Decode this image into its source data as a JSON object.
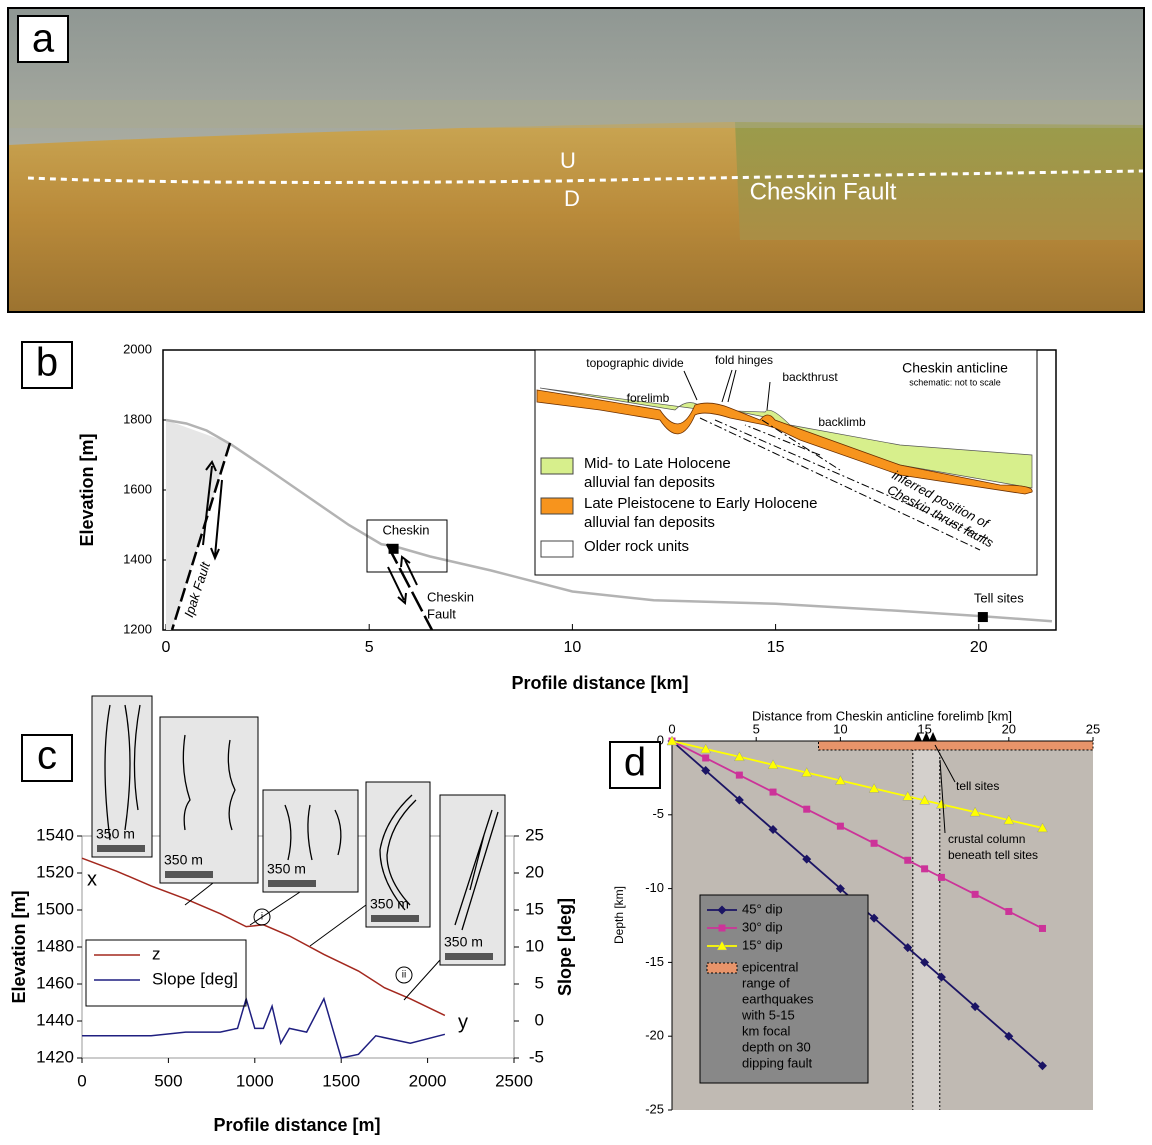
{
  "photo": {
    "label": "a",
    "up": "U",
    "down": "D",
    "fault": "Cheskin Fault"
  },
  "chart_data": [
    {
      "type": "line",
      "panel": "b",
      "xlabel": "Profile distance [km]",
      "ylabel": "Elevation [m]",
      "xlim": [
        0,
        21.9
      ],
      "ylim": [
        1200,
        2000
      ],
      "xticks": [
        0,
        5,
        10,
        15,
        20
      ],
      "yticks": [
        1200,
        1400,
        1600,
        1800,
        2000
      ],
      "x": [
        0,
        0.5,
        1,
        1.6,
        2.5,
        3.5,
        4.5,
        5.3,
        5.6,
        6.5,
        8,
        10,
        12,
        15,
        18,
        20,
        21.8
      ],
      "values": [
        1800,
        1790,
        1770,
        1730,
        1660,
        1580,
        1500,
        1445,
        1440,
        1410,
        1370,
        1310,
        1285,
        1275,
        1255,
        1240,
        1225
      ],
      "color": "#b3b3b3",
      "sites": [
        {
          "name": "Cheskin",
          "x": 5.6,
          "y": 1432
        },
        {
          "name": "Tell sites",
          "x": 20.1,
          "y": 1237
        }
      ],
      "ipak": "Ipak Fault",
      "cheskin_fault": [
        "Cheskin",
        "Fault"
      ],
      "inset": {
        "title": "Cheskin anticline",
        "note": "schematic: not to scale",
        "divide": "topographic divide",
        "hinges": "fold hinges",
        "backthrust": "backthrust",
        "forelimb": "forelimb",
        "backlimb": "backlimb",
        "thrusts": [
          "inferred position of",
          "Cheskin thrust faults"
        ],
        "legend": [
          {
            "lines": [
              "Mid- to Late Holocene",
              "alluvial fan deposits"
            ],
            "color": "#d7ef8c"
          },
          {
            "lines": [
              "Late Pleistocene to Early Holocene",
              "alluvial fan deposits"
            ],
            "color": "#f7941d"
          },
          {
            "lines": [
              "Older rock units"
            ],
            "color": "#ffffff"
          }
        ]
      }
    },
    {
      "type": "line",
      "panel": "c",
      "xlabel": "Profile distance [m]",
      "ylabel": "Elevation [m]",
      "y2label": "Slope [deg]",
      "xlim": [
        0,
        2500
      ],
      "ylim": [
        1420,
        1540
      ],
      "y2lim": [
        -5,
        25
      ],
      "xticks": [
        0,
        500,
        1000,
        1500,
        2000,
        2500
      ],
      "yticks": [
        1420,
        1440,
        1460,
        1480,
        1500,
        1520,
        1540
      ],
      "y2ticks": [
        -5,
        0,
        5,
        10,
        15,
        20,
        25
      ],
      "series": [
        {
          "name": "z",
          "color": "#a3281e",
          "x": [
            0,
            200,
            400,
            600,
            800,
            950,
            1050,
            1200,
            1400,
            1600,
            1750,
            1900,
            2100
          ],
          "values": [
            1528,
            1521,
            1513,
            1506,
            1498,
            1491,
            1492,
            1486,
            1476,
            1467,
            1458,
            1452,
            1443
          ]
        },
        {
          "name": "Slope [deg]",
          "color": "#1f1f80",
          "axis": "y2",
          "x": [
            0,
            200,
            400,
            600,
            800,
            900,
            950,
            1000,
            1050,
            1100,
            1150,
            1200,
            1300,
            1400,
            1450,
            1500,
            1600,
            1700,
            1900,
            2100
          ],
          "values": [
            -2,
            -2,
            -2,
            -1.5,
            -1.5,
            -1,
            3,
            -1,
            -1,
            2,
            -3,
            -1,
            -1.5,
            3,
            -1,
            -5,
            -4.5,
            -2,
            -3,
            -1.8
          ]
        }
      ],
      "start": "x",
      "end": "y",
      "i": "i",
      "ii": "ii",
      "scale_labels": [
        "350 m",
        "350 m",
        "350 m",
        "350 m",
        "350 m"
      ]
    },
    {
      "type": "line",
      "panel": "d",
      "title": "Distance from Cheskin anticline forelimb [km]",
      "ylabel": "Depth [km]",
      "xlim": [
        0,
        25
      ],
      "ylim": [
        -25,
        0
      ],
      "xticks": [
        0,
        5,
        10,
        15,
        20,
        25
      ],
      "yticks": [
        0,
        -5,
        -10,
        -15,
        -20,
        -25
      ],
      "x": [
        0,
        2,
        4,
        6,
        8,
        10,
        12,
        14,
        15,
        16,
        18,
        20,
        22
      ],
      "series": [
        {
          "name": "45° dip",
          "color": "#1b1464",
          "marker": "diamond",
          "values": [
            0,
            -2,
            -4,
            -6,
            -8,
            -10,
            -12,
            -14,
            -15,
            -16,
            -18,
            -20,
            -22
          ]
        },
        {
          "name": "30° dip",
          "color": "#cc3399",
          "marker": "square",
          "values": [
            0,
            -1.15,
            -2.31,
            -3.46,
            -4.62,
            -5.77,
            -6.93,
            -8.08,
            -8.66,
            -9.24,
            -10.39,
            -11.55,
            -12.7
          ]
        },
        {
          "name": "15° dip",
          "color": "#ffff00",
          "marker": "triangle",
          "values": [
            0,
            -0.54,
            -1.07,
            -1.61,
            -2.14,
            -2.68,
            -3.22,
            -3.75,
            -4.02,
            -4.29,
            -4.82,
            -5.36,
            -5.89
          ]
        }
      ],
      "epicentral": {
        "lines": [
          "epicentral",
          "range of",
          "earthquakes",
          "with 5-15",
          "km focal",
          "depth on 30",
          "dipping fault"
        ],
        "range": [
          8.7,
          25
        ],
        "color": "#e8946a"
      },
      "tell_column": [
        14.3,
        15.9
      ],
      "tell_markers": [
        14.6,
        15.1,
        15.5
      ],
      "tell": "tell sites",
      "column": [
        "crustal column",
        "beneath tell sites"
      ],
      "background": "#c0bab3"
    }
  ]
}
